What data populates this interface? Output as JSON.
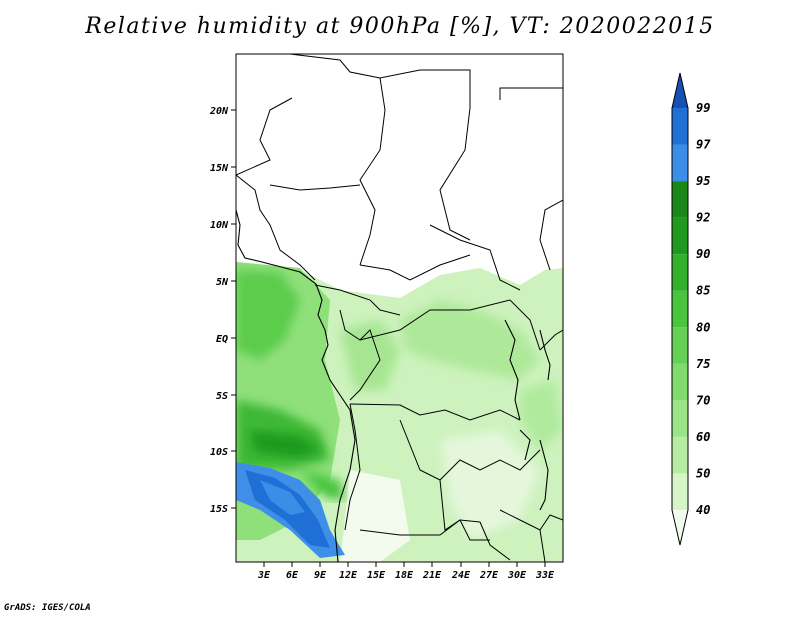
{
  "title": "Relative humidity at 900hPa [%], VT: 2020022015",
  "credit": "GrADS: IGES/COLA",
  "latitude_labels": [
    "20N",
    "15N",
    "10N",
    "5N",
    "EQ",
    "5S",
    "10S",
    "15S"
  ],
  "longitude_labels": [
    "3E",
    "6E",
    "9E",
    "12E",
    "15E",
    "18E",
    "21E",
    "24E",
    "27E",
    "30E",
    "33E"
  ],
  "colorbar": {
    "levels": [
      "40",
      "50",
      "60",
      "70",
      "75",
      "80",
      "85",
      "90",
      "92",
      "95",
      "97",
      "99"
    ],
    "colors": [
      "#f0fbeb",
      "#d6f5c8",
      "#b7eda3",
      "#9be487",
      "#80db6d",
      "#64d055",
      "#49c43f",
      "#32b02c",
      "#1f9a1e",
      "#1b8718",
      "#3b8ee8",
      "#1f6fd6",
      "#1351b4"
    ]
  }
}
